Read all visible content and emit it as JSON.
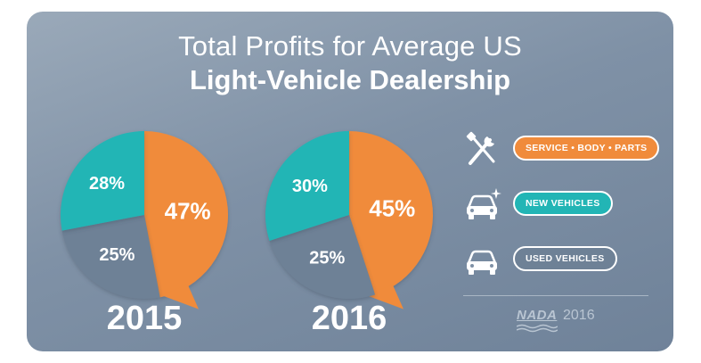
{
  "title": {
    "line1": "Total Profits for Average US",
    "line2": "Light-Vehicle Dealership"
  },
  "chart_data": [
    {
      "type": "pie",
      "title": "2015",
      "slices": [
        {
          "label": "SERVICE • BODY • PARTS",
          "value": 47,
          "display": "47%",
          "color": "#f08b3b"
        },
        {
          "label": "USED VEHICLES",
          "value": 25,
          "display": "25%",
          "color": "#6e8196"
        },
        {
          "label": "NEW VEHICLES",
          "value": 28,
          "display": "28%",
          "color": "#22b5b5"
        }
      ]
    },
    {
      "type": "pie",
      "title": "2016",
      "slices": [
        {
          "label": "SERVICE • BODY • PARTS",
          "value": 45,
          "display": "45%",
          "color": "#f08b3b"
        },
        {
          "label": "USED VEHICLES",
          "value": 25,
          "display": "25%",
          "color": "#6e8196"
        },
        {
          "label": "NEW VEHICLES",
          "value": 30,
          "display": "30%",
          "color": "#22b5b5"
        }
      ]
    }
  ],
  "legend": [
    {
      "label": "SERVICE • BODY • PARTS",
      "color": "#f08b3b",
      "icon": "wrench-screwdriver-icon"
    },
    {
      "label": "NEW VEHICLES",
      "color": "#22b5b5",
      "icon": "new-car-icon"
    },
    {
      "label": "USED VEHICLES",
      "color": "#6e8196",
      "icon": "used-car-icon"
    }
  ],
  "source": {
    "logo": "NADA",
    "year": "2016"
  },
  "colors": {
    "service": "#f08b3b",
    "new": "#22b5b5",
    "used": "#6e8196",
    "background": "#8596aa"
  }
}
